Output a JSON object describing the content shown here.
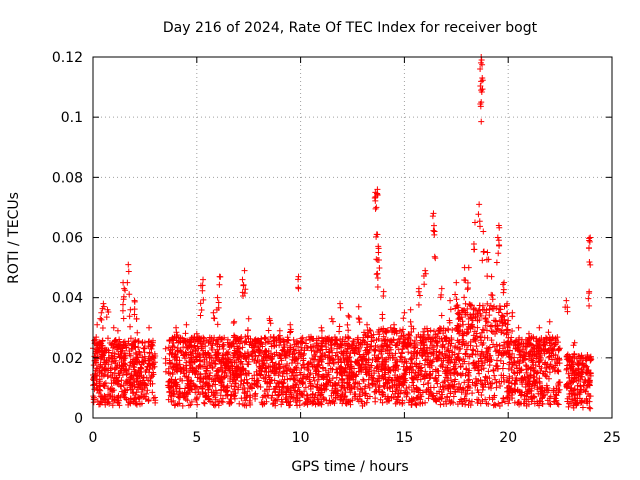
{
  "chart_data": {
    "type": "scatter",
    "title": "Day 216 of 2024, Rate Of TEC Index for receiver bogt",
    "xlabel": "GPS time / hours",
    "ylabel": "ROTI / TECUs",
    "xlim": [
      0,
      25
    ],
    "ylim": [
      0,
      0.12
    ],
    "xticks": [
      0,
      5,
      10,
      15,
      20,
      25
    ],
    "yticks": [
      0,
      0.02,
      0.04,
      0.06,
      0.08,
      0.1,
      0.12
    ],
    "grid": true,
    "marker": "+",
    "color": "#ff0000",
    "series": [
      {
        "name": "ROTI",
        "points": [
          [
            0.1,
            0.026
          ],
          [
            0.2,
            0.031
          ],
          [
            0.4,
            0.035
          ],
          [
            0.5,
            0.038
          ],
          [
            0.7,
            0.036
          ],
          [
            1.0,
            0.03
          ],
          [
            1.2,
            0.029
          ],
          [
            1.45,
            0.045
          ],
          [
            1.5,
            0.043
          ],
          [
            1.7,
            0.051
          ],
          [
            1.8,
            0.036
          ],
          [
            2.0,
            0.039
          ],
          [
            2.1,
            0.033
          ],
          [
            2.5,
            0.025
          ],
          [
            2.7,
            0.03
          ],
          [
            3.5,
            0.023
          ],
          [
            4.0,
            0.03
          ],
          [
            4.5,
            0.031
          ],
          [
            5.0,
            0.028
          ],
          [
            5.2,
            0.044
          ],
          [
            5.3,
            0.046
          ],
          [
            5.8,
            0.035
          ],
          [
            6.0,
            0.04
          ],
          [
            6.1,
            0.047
          ],
          [
            6.5,
            0.026
          ],
          [
            6.8,
            0.032
          ],
          [
            7.2,
            0.046
          ],
          [
            7.3,
            0.049
          ],
          [
            7.5,
            0.033
          ],
          [
            8.0,
            0.025
          ],
          [
            8.5,
            0.033
          ],
          [
            9.0,
            0.029
          ],
          [
            9.5,
            0.031
          ],
          [
            9.9,
            0.047
          ],
          [
            10.5,
            0.027
          ],
          [
            11.0,
            0.03
          ],
          [
            11.5,
            0.033
          ],
          [
            11.9,
            0.038
          ],
          [
            12.3,
            0.034
          ],
          [
            12.8,
            0.037
          ],
          [
            13.2,
            0.031
          ],
          [
            13.6,
            0.075
          ],
          [
            13.7,
            0.076
          ],
          [
            13.65,
            0.07
          ],
          [
            13.7,
            0.061
          ],
          [
            13.75,
            0.055
          ],
          [
            13.7,
            0.048
          ],
          [
            14.0,
            0.042
          ],
          [
            14.5,
            0.031
          ],
          [
            15.0,
            0.035
          ],
          [
            15.3,
            0.036
          ],
          [
            15.7,
            0.043
          ],
          [
            16.0,
            0.049
          ],
          [
            16.4,
            0.068
          ],
          [
            16.45,
            0.062
          ],
          [
            16.8,
            0.043
          ],
          [
            17.2,
            0.039
          ],
          [
            17.5,
            0.045
          ],
          [
            17.9,
            0.05
          ],
          [
            18.1,
            0.05
          ],
          [
            18.4,
            0.065
          ],
          [
            18.6,
            0.071
          ],
          [
            18.7,
            0.12
          ],
          [
            18.72,
            0.119
          ],
          [
            18.75,
            0.113
          ],
          [
            18.7,
            0.105
          ],
          [
            18.8,
            0.062
          ],
          [
            19.0,
            0.055
          ],
          [
            19.2,
            0.047
          ],
          [
            19.5,
            0.06
          ],
          [
            19.55,
            0.064
          ],
          [
            19.8,
            0.045
          ],
          [
            20.2,
            0.035
          ],
          [
            20.5,
            0.03
          ],
          [
            21.0,
            0.028
          ],
          [
            21.5,
            0.03
          ],
          [
            22.0,
            0.032
          ],
          [
            22.8,
            0.039
          ],
          [
            23.2,
            0.025
          ],
          [
            23.6,
            0.02
          ],
          [
            23.9,
            0.059
          ],
          [
            23.95,
            0.06
          ],
          [
            23.9,
            0.042
          ]
        ]
      }
    ],
    "dense_band": {
      "description": "continuous baseline of ROTI values",
      "segments": [
        {
          "x_start": 0.0,
          "x_end": 3.0,
          "y_low": 0.004,
          "y_high": 0.026
        },
        {
          "x_start": 3.6,
          "x_end": 13.0,
          "y_low": 0.004,
          "y_high": 0.027
        },
        {
          "x_start": 13.0,
          "x_end": 17.5,
          "y_low": 0.004,
          "y_high": 0.03
        },
        {
          "x_start": 17.5,
          "x_end": 20.0,
          "y_low": 0.004,
          "y_high": 0.038
        },
        {
          "x_start": 20.0,
          "x_end": 22.5,
          "y_low": 0.004,
          "y_high": 0.027
        },
        {
          "x_start": 22.8,
          "x_end": 24.0,
          "y_low": 0.003,
          "y_high": 0.022
        }
      ]
    }
  }
}
